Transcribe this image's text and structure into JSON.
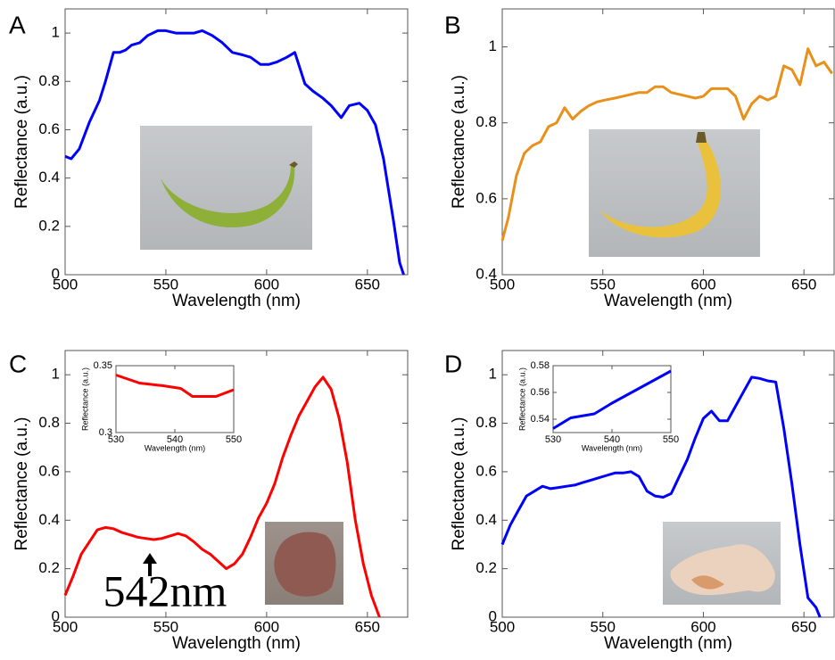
{
  "chart_data": [
    {
      "type": "line",
      "label": "A",
      "xlabel": "Wavelength (nm)",
      "ylabel": "Reflectance (a.u.)",
      "xlim": [
        500,
        670
      ],
      "ylim": [
        0,
        1.1
      ],
      "xticks": [
        500,
        550,
        600,
        650
      ],
      "yticks": [
        0,
        0.2,
        0.4,
        0.6,
        0.8,
        1
      ],
      "color": "#0000ff",
      "x": [
        500,
        503,
        507,
        512,
        517,
        520,
        524,
        527,
        530,
        533,
        537,
        541,
        546,
        550,
        555,
        560,
        564,
        568,
        573,
        578,
        583,
        588,
        592,
        597,
        601,
        605,
        610,
        614,
        619,
        623,
        628,
        632,
        637,
        641,
        646,
        650,
        654,
        658,
        663,
        666,
        668
      ],
      "values": [
        0.49,
        0.48,
        0.52,
        0.63,
        0.72,
        0.8,
        0.92,
        0.92,
        0.93,
        0.95,
        0.96,
        0.99,
        1.01,
        1.01,
        1.0,
        1.0,
        1.0,
        1.01,
        0.99,
        0.96,
        0.92,
        0.91,
        0.9,
        0.87,
        0.87,
        0.88,
        0.9,
        0.92,
        0.79,
        0.76,
        0.73,
        0.7,
        0.65,
        0.7,
        0.71,
        0.68,
        0.62,
        0.48,
        0.22,
        0.05,
        0
      ]
    },
    {
      "type": "line",
      "label": "B",
      "xlabel": "Wavelength (nm)",
      "ylabel": "Reflectance (a.u.)",
      "xlim": [
        500,
        665
      ],
      "ylim": [
        0.4,
        1.1
      ],
      "xticks": [
        500,
        550,
        600,
        650
      ],
      "yticks": [
        0.4,
        0.6,
        0.8,
        1
      ],
      "color": "#e8901a",
      "x": [
        500,
        503,
        507,
        511,
        515,
        519,
        523,
        527,
        531,
        535,
        539,
        543,
        547,
        551,
        556,
        560,
        564,
        568,
        572,
        576,
        580,
        584,
        588,
        592,
        596,
        600,
        604,
        608,
        612,
        616,
        620,
        624,
        628,
        632,
        636,
        640,
        644,
        648,
        652,
        656,
        660,
        664
      ],
      "values": [
        0.49,
        0.55,
        0.66,
        0.72,
        0.74,
        0.75,
        0.79,
        0.8,
        0.84,
        0.81,
        0.83,
        0.845,
        0.855,
        0.86,
        0.865,
        0.87,
        0.875,
        0.88,
        0.88,
        0.895,
        0.895,
        0.88,
        0.875,
        0.87,
        0.865,
        0.87,
        0.89,
        0.89,
        0.89,
        0.87,
        0.81,
        0.85,
        0.87,
        0.86,
        0.87,
        0.95,
        0.94,
        0.9,
        0.995,
        0.95,
        0.96,
        0.93
      ]
    },
    {
      "type": "line",
      "label": "C",
      "xlabel": "Wavelength (nm)",
      "ylabel": "Reflectance (a.u.)",
      "xlim": [
        500,
        670
      ],
      "ylim": [
        0,
        1.1
      ],
      "xticks": [
        500,
        550,
        600,
        650
      ],
      "yticks": [
        0,
        0.2,
        0.4,
        0.6,
        0.8,
        1
      ],
      "color": "#ff0000",
      "annotation": "542nm",
      "x": [
        500,
        504,
        508,
        512,
        516,
        520,
        524,
        528,
        532,
        536,
        540,
        544,
        548,
        552,
        556,
        560,
        564,
        568,
        572,
        576,
        580,
        584,
        588,
        592,
        596,
        600,
        604,
        608,
        612,
        616,
        620,
        624,
        628,
        632,
        636,
        640,
        644,
        648,
        652,
        656
      ],
      "values": [
        0.09,
        0.17,
        0.26,
        0.31,
        0.36,
        0.37,
        0.365,
        0.35,
        0.34,
        0.33,
        0.325,
        0.32,
        0.325,
        0.335,
        0.345,
        0.335,
        0.31,
        0.28,
        0.26,
        0.23,
        0.2,
        0.22,
        0.26,
        0.33,
        0.41,
        0.47,
        0.55,
        0.66,
        0.75,
        0.83,
        0.89,
        0.95,
        0.99,
        0.94,
        0.82,
        0.64,
        0.4,
        0.22,
        0.09,
        0
      ]
    },
    {
      "type": "line",
      "label": "D",
      "xlabel": "Wavelength (nm)",
      "ylabel": "Reflectance (a.u.)",
      "xlim": [
        500,
        665
      ],
      "ylim": [
        0,
        1.1
      ],
      "xticks": [
        500,
        550,
        600,
        650
      ],
      "yticks": [
        0,
        0.2,
        0.4,
        0.6,
        0.8,
        1
      ],
      "color": "#0000ff",
      "x": [
        500,
        504,
        508,
        512,
        516,
        520,
        524,
        528,
        532,
        536,
        540,
        544,
        548,
        552,
        556,
        560,
        564,
        568,
        572,
        576,
        580,
        584,
        588,
        592,
        596,
        600,
        604,
        608,
        612,
        616,
        620,
        624,
        628,
        632,
        636,
        640,
        644,
        648,
        652,
        656,
        658
      ],
      "values": [
        0.3,
        0.38,
        0.44,
        0.5,
        0.52,
        0.54,
        0.53,
        0.535,
        0.54,
        0.545,
        0.555,
        0.565,
        0.575,
        0.585,
        0.595,
        0.595,
        0.6,
        0.58,
        0.52,
        0.5,
        0.495,
        0.51,
        0.58,
        0.65,
        0.74,
        0.82,
        0.85,
        0.81,
        0.81,
        0.87,
        0.93,
        0.99,
        0.985,
        0.975,
        0.97,
        0.78,
        0.55,
        0.3,
        0.08,
        0.04,
        0
      ]
    },
    {
      "type": "line",
      "xlabel": "Wavelength (nm)",
      "ylabel": "Reflectance (a.u.)",
      "xlim": [
        530,
        550
      ],
      "ylim": [
        0.3,
        0.35
      ],
      "xticks": [
        530,
        540,
        550
      ],
      "yticks": [
        0.3,
        0.35
      ],
      "color": "#ff0000",
      "x": [
        530,
        534,
        538,
        541,
        543,
        547,
        550
      ],
      "values": [
        0.343,
        0.337,
        0.335,
        0.333,
        0.327,
        0.327,
        0.332
      ]
    },
    {
      "type": "line",
      "xlabel": "Wavelength (nm)",
      "ylabel": "Reflectance (a.u.)",
      "xlim": [
        530,
        550
      ],
      "ylim": [
        0.53,
        0.58
      ],
      "xticks": [
        530,
        540,
        550
      ],
      "yticks": [
        0.54,
        0.56,
        0.58
      ],
      "color": "#0000ff",
      "x": [
        530,
        533,
        537,
        540,
        550
      ],
      "values": [
        0.533,
        0.541,
        0.544,
        0.552,
        0.576
      ]
    }
  ]
}
